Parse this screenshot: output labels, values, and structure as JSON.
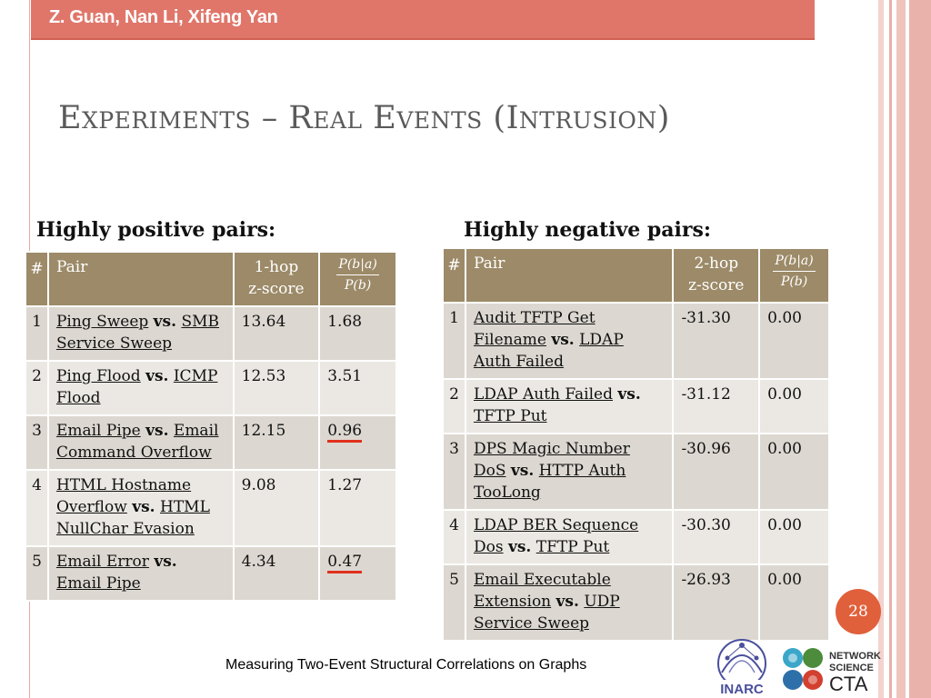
{
  "header": {
    "authors": "Z. Guan, Nan Li, Xifeng Yan"
  },
  "slide": {
    "title": "Experiments – Real Events (Intrusion)"
  },
  "positive": {
    "heading": "Highly positive pairs:",
    "columns": {
      "num": "#",
      "pair": "Pair",
      "score_line1": "1-hop",
      "score_line2": "z-score",
      "frac_num": "P(b|a)",
      "frac_den": "P(b)"
    },
    "rows": [
      {
        "idx": "1",
        "a": "Ping Sweep",
        "vs": "vs.",
        "b": "SMB Service Sweep",
        "z": "13.64",
        "ratio": "1.68"
      },
      {
        "idx": "2",
        "a": "Ping Flood",
        "vs": "vs.",
        "b": "ICMP Flood",
        "z": "12.53",
        "ratio": "3.51"
      },
      {
        "idx": "3",
        "a": "Email Pipe",
        "vs": "vs.",
        "b": "Email Command Overflow",
        "z": "12.15",
        "ratio": "0.96"
      },
      {
        "idx": "4",
        "a": "HTML Hostname Overflow",
        "vs": "vs.",
        "b": "HTML NullChar Evasion",
        "z": "9.08",
        "ratio": "1.27"
      },
      {
        "idx": "5",
        "a": "Email Error",
        "vs": "vs.",
        "b": "Email Pipe",
        "z": "4.34",
        "ratio": "0.47"
      }
    ]
  },
  "negative": {
    "heading": "Highly negative pairs:",
    "columns": {
      "num": "#",
      "pair": "Pair",
      "score_line1": "2-hop",
      "score_line2": "z-score",
      "frac_num": "P(b|a)",
      "frac_den": "P(b)"
    },
    "rows": [
      {
        "idx": "1",
        "a": "Audit TFTP Get Filename",
        "vs": "vs.",
        "b": "LDAP Auth Failed",
        "z": "-31.30",
        "ratio": "0.00"
      },
      {
        "idx": "2",
        "a": "LDAP Auth Failed",
        "vs": "vs.",
        "b": "TFTP Put",
        "z": "-31.12",
        "ratio": "0.00"
      },
      {
        "idx": "3",
        "a": "DPS Magic Number DoS",
        "vs": "vs.",
        "b": "HTTP Auth TooLong",
        "z": "-30.96",
        "ratio": "0.00"
      },
      {
        "idx": "4",
        "a": "LDAP BER Sequence Dos",
        "vs": "vs.",
        "b": "TFTP Put",
        "z": "-30.30",
        "ratio": "0.00"
      },
      {
        "idx": "5",
        "a": "Email Executable Extension",
        "vs": "vs.",
        "b": "UDP Service Sweep",
        "z": "-26.93",
        "ratio": "0.00"
      }
    ]
  },
  "footer": {
    "text": "Measuring Two-Event Structural Correlations on Graphs",
    "page_number": "28",
    "logo_left_text": "INARC",
    "logo_right_line1": "NETWORK",
    "logo_right_line2": "SCIENCE",
    "logo_right_line3": "CTA"
  },
  "colors": {
    "header_band": "#e0766a",
    "table_header": "#9c8a68",
    "row_even": "#ebe8e3",
    "row_odd": "#dcd8d1",
    "emphasis_underline": "#e0301e",
    "page_badge": "#e0603c"
  }
}
